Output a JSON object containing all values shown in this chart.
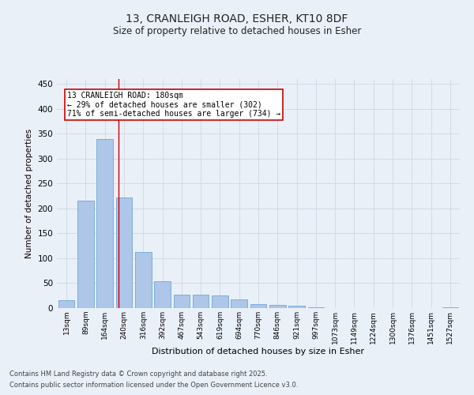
{
  "title1": "13, CRANLEIGH ROAD, ESHER, KT10 8DF",
  "title2": "Size of property relative to detached houses in Esher",
  "xlabel": "Distribution of detached houses by size in Esher",
  "ylabel": "Number of detached properties",
  "categories": [
    "13sqm",
    "89sqm",
    "164sqm",
    "240sqm",
    "316sqm",
    "392sqm",
    "467sqm",
    "543sqm",
    "619sqm",
    "694sqm",
    "770sqm",
    "846sqm",
    "921sqm",
    "997sqm",
    "1073sqm",
    "1149sqm",
    "1224sqm",
    "1300sqm",
    "1376sqm",
    "1451sqm",
    "1527sqm"
  ],
  "values": [
    16,
    215,
    340,
    222,
    112,
    54,
    27,
    27,
    25,
    18,
    8,
    6,
    4,
    1,
    0,
    0,
    0,
    0,
    0,
    0,
    1
  ],
  "bar_color": "#aec6e8",
  "bar_edge_color": "#5b9bd5",
  "vline_x": 2.72,
  "vline_color": "#cc0000",
  "annotation_box_text": "13 CRANLEIGH ROAD: 180sqm\n← 29% of detached houses are smaller (302)\n71% of semi-detached houses are larger (734) →",
  "annotation_box_color": "#cc0000",
  "annotation_box_bg": "#ffffff",
  "ylim": [
    0,
    460
  ],
  "yticks": [
    0,
    50,
    100,
    150,
    200,
    250,
    300,
    350,
    400,
    450
  ],
  "grid_color": "#d0dce8",
  "bg_color": "#eaf0f8",
  "footer1": "Contains HM Land Registry data © Crown copyright and database right 2025.",
  "footer2": "Contains public sector information licensed under the Open Government Licence v3.0."
}
